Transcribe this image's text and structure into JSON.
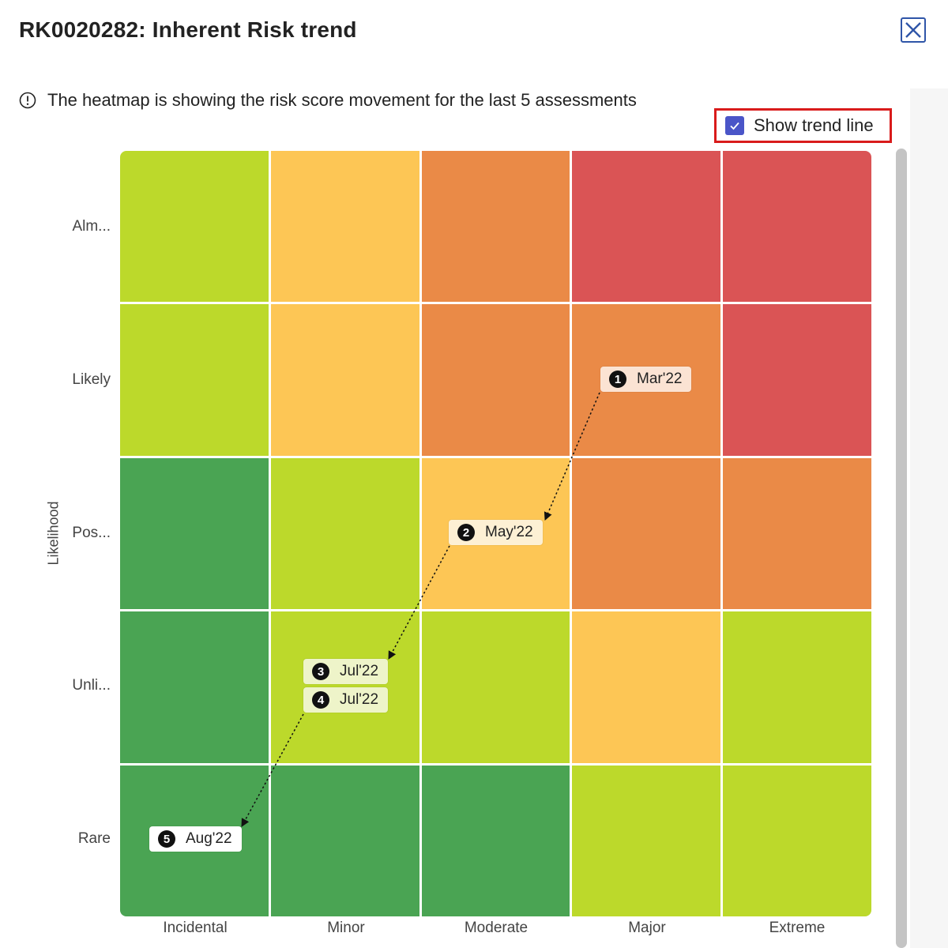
{
  "dialog": {
    "title": "RK0020282: Inherent Risk trend",
    "info_text": "The heatmap is showing the risk score movement for the last 5 assessments",
    "show_trend_line": {
      "label": "Show trend line",
      "checked": true
    }
  },
  "heatmap": {
    "y_axis_label": "Likelihood",
    "rows": [
      "Alm...",
      "Likely",
      "Pos...",
      "Unli...",
      "Rare"
    ],
    "columns": [
      "Incidental",
      "Minor",
      "Moderate",
      "Major",
      "Extreme"
    ],
    "colors": {
      "green": "#4aa453",
      "lime": "#bcd92b",
      "yellow": "#fdc655",
      "orange": "#ea8a47",
      "red": "#da5455"
    },
    "cell_colors": [
      [
        "lime",
        "yellow",
        "orange",
        "red",
        "red"
      ],
      [
        "lime",
        "yellow",
        "orange",
        "orange",
        "red"
      ],
      [
        "green",
        "lime",
        "yellow",
        "orange",
        "orange"
      ],
      [
        "green",
        "lime",
        "lime",
        "yellow",
        "lime"
      ],
      [
        "green",
        "green",
        "green",
        "lime",
        "lime"
      ]
    ],
    "assessments": [
      {
        "n": "1",
        "label": "Mar'22",
        "likelihood": "Likely",
        "impact": "Major"
      },
      {
        "n": "2",
        "label": "May'22",
        "likelihood": "Pos...",
        "impact": "Moderate"
      },
      {
        "n": "3",
        "label": "Jul'22",
        "likelihood": "Unli...",
        "impact": "Minor"
      },
      {
        "n": "4",
        "label": "Jul'22",
        "likelihood": "Unli...",
        "impact": "Minor"
      },
      {
        "n": "5",
        "label": "Aug'22",
        "likelihood": "Rare",
        "impact": "Incidental"
      }
    ]
  }
}
